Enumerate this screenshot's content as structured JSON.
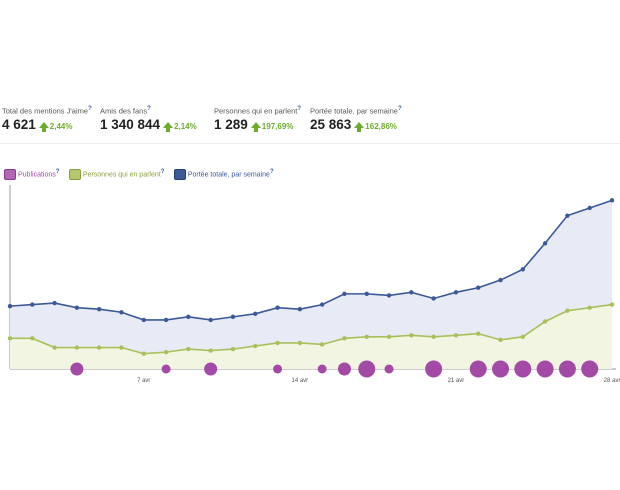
{
  "stats": [
    {
      "label": "Total des mentions J'aime",
      "q": "?",
      "value": "4 621",
      "change": "2,44%"
    },
    {
      "label": "Amis des fans",
      "q": "?",
      "value": "1 340 844",
      "change": "2,14%"
    },
    {
      "label": "Personnes qui en parlent",
      "q": "?",
      "value": "1 289",
      "change": "197,69%"
    },
    {
      "label": "Portée totale, par semaine",
      "q": "?",
      "value": "25 863",
      "change": "162,86%"
    }
  ],
  "legend": [
    {
      "label": "Publications",
      "q": "?",
      "color": "#a24aa6"
    },
    {
      "label": "Personnes qui en parlent",
      "q": "?",
      "color": "#96b04a"
    },
    {
      "label": "Portée totale, par semaine",
      "q": "?",
      "color": "#3b5998"
    }
  ],
  "colors": {
    "reach": "#3b5998",
    "talking": "#a8c05a",
    "posts": "#a24aa6",
    "up": "#6cab2e"
  },
  "chart_data": {
    "type": "line",
    "x_ticks": [
      "7 avr",
      "14 avr",
      "21 avr",
      "28 avr"
    ],
    "x": [
      "1 avr",
      "2 avr",
      "3 avr",
      "4 avr",
      "5 avr",
      "6 avr",
      "7 avr",
      "8 avr",
      "9 avr",
      "10 avr",
      "11 avr",
      "12 avr",
      "13 avr",
      "14 avr",
      "15 avr",
      "16 avr",
      "17 avr",
      "18 avr",
      "19 avr",
      "20 avr",
      "21 avr",
      "22 avr",
      "23 avr",
      "24 avr",
      "25 avr",
      "26 avr",
      "27 avr",
      "28 avr"
    ],
    "series": [
      {
        "name": "Portée totale, par semaine",
        "values": [
          0.41,
          0.42,
          0.43,
          0.4,
          0.39,
          0.37,
          0.32,
          0.32,
          0.34,
          0.32,
          0.34,
          0.36,
          0.4,
          0.39,
          0.42,
          0.49,
          0.49,
          0.48,
          0.5,
          0.46,
          0.5,
          0.53,
          0.58,
          0.65,
          0.82,
          1.0,
          1.05,
          1.1
        ]
      },
      {
        "name": "Personnes qui en parlent",
        "values": [
          0.2,
          0.2,
          0.14,
          0.14,
          0.14,
          0.14,
          0.1,
          0.11,
          0.13,
          0.12,
          0.13,
          0.15,
          0.17,
          0.17,
          0.16,
          0.2,
          0.21,
          0.21,
          0.22,
          0.21,
          0.22,
          0.23,
          0.19,
          0.21,
          0.31,
          0.38,
          0.4,
          0.42
        ]
      }
    ],
    "posts": [
      {
        "day": 3,
        "size": 2
      },
      {
        "day": 7,
        "size": 1
      },
      {
        "day": 9,
        "size": 2
      },
      {
        "day": 12,
        "size": 1
      },
      {
        "day": 14,
        "size": 1
      },
      {
        "day": 15,
        "size": 2
      },
      {
        "day": 16,
        "size": 3
      },
      {
        "day": 17,
        "size": 1
      },
      {
        "day": 19,
        "size": 3
      },
      {
        "day": 21,
        "size": 3
      },
      {
        "day": 22,
        "size": 3
      },
      {
        "day": 23,
        "size": 3
      },
      {
        "day": 24,
        "size": 3
      },
      {
        "day": 25,
        "size": 3
      },
      {
        "day": 26,
        "size": 3
      }
    ]
  }
}
